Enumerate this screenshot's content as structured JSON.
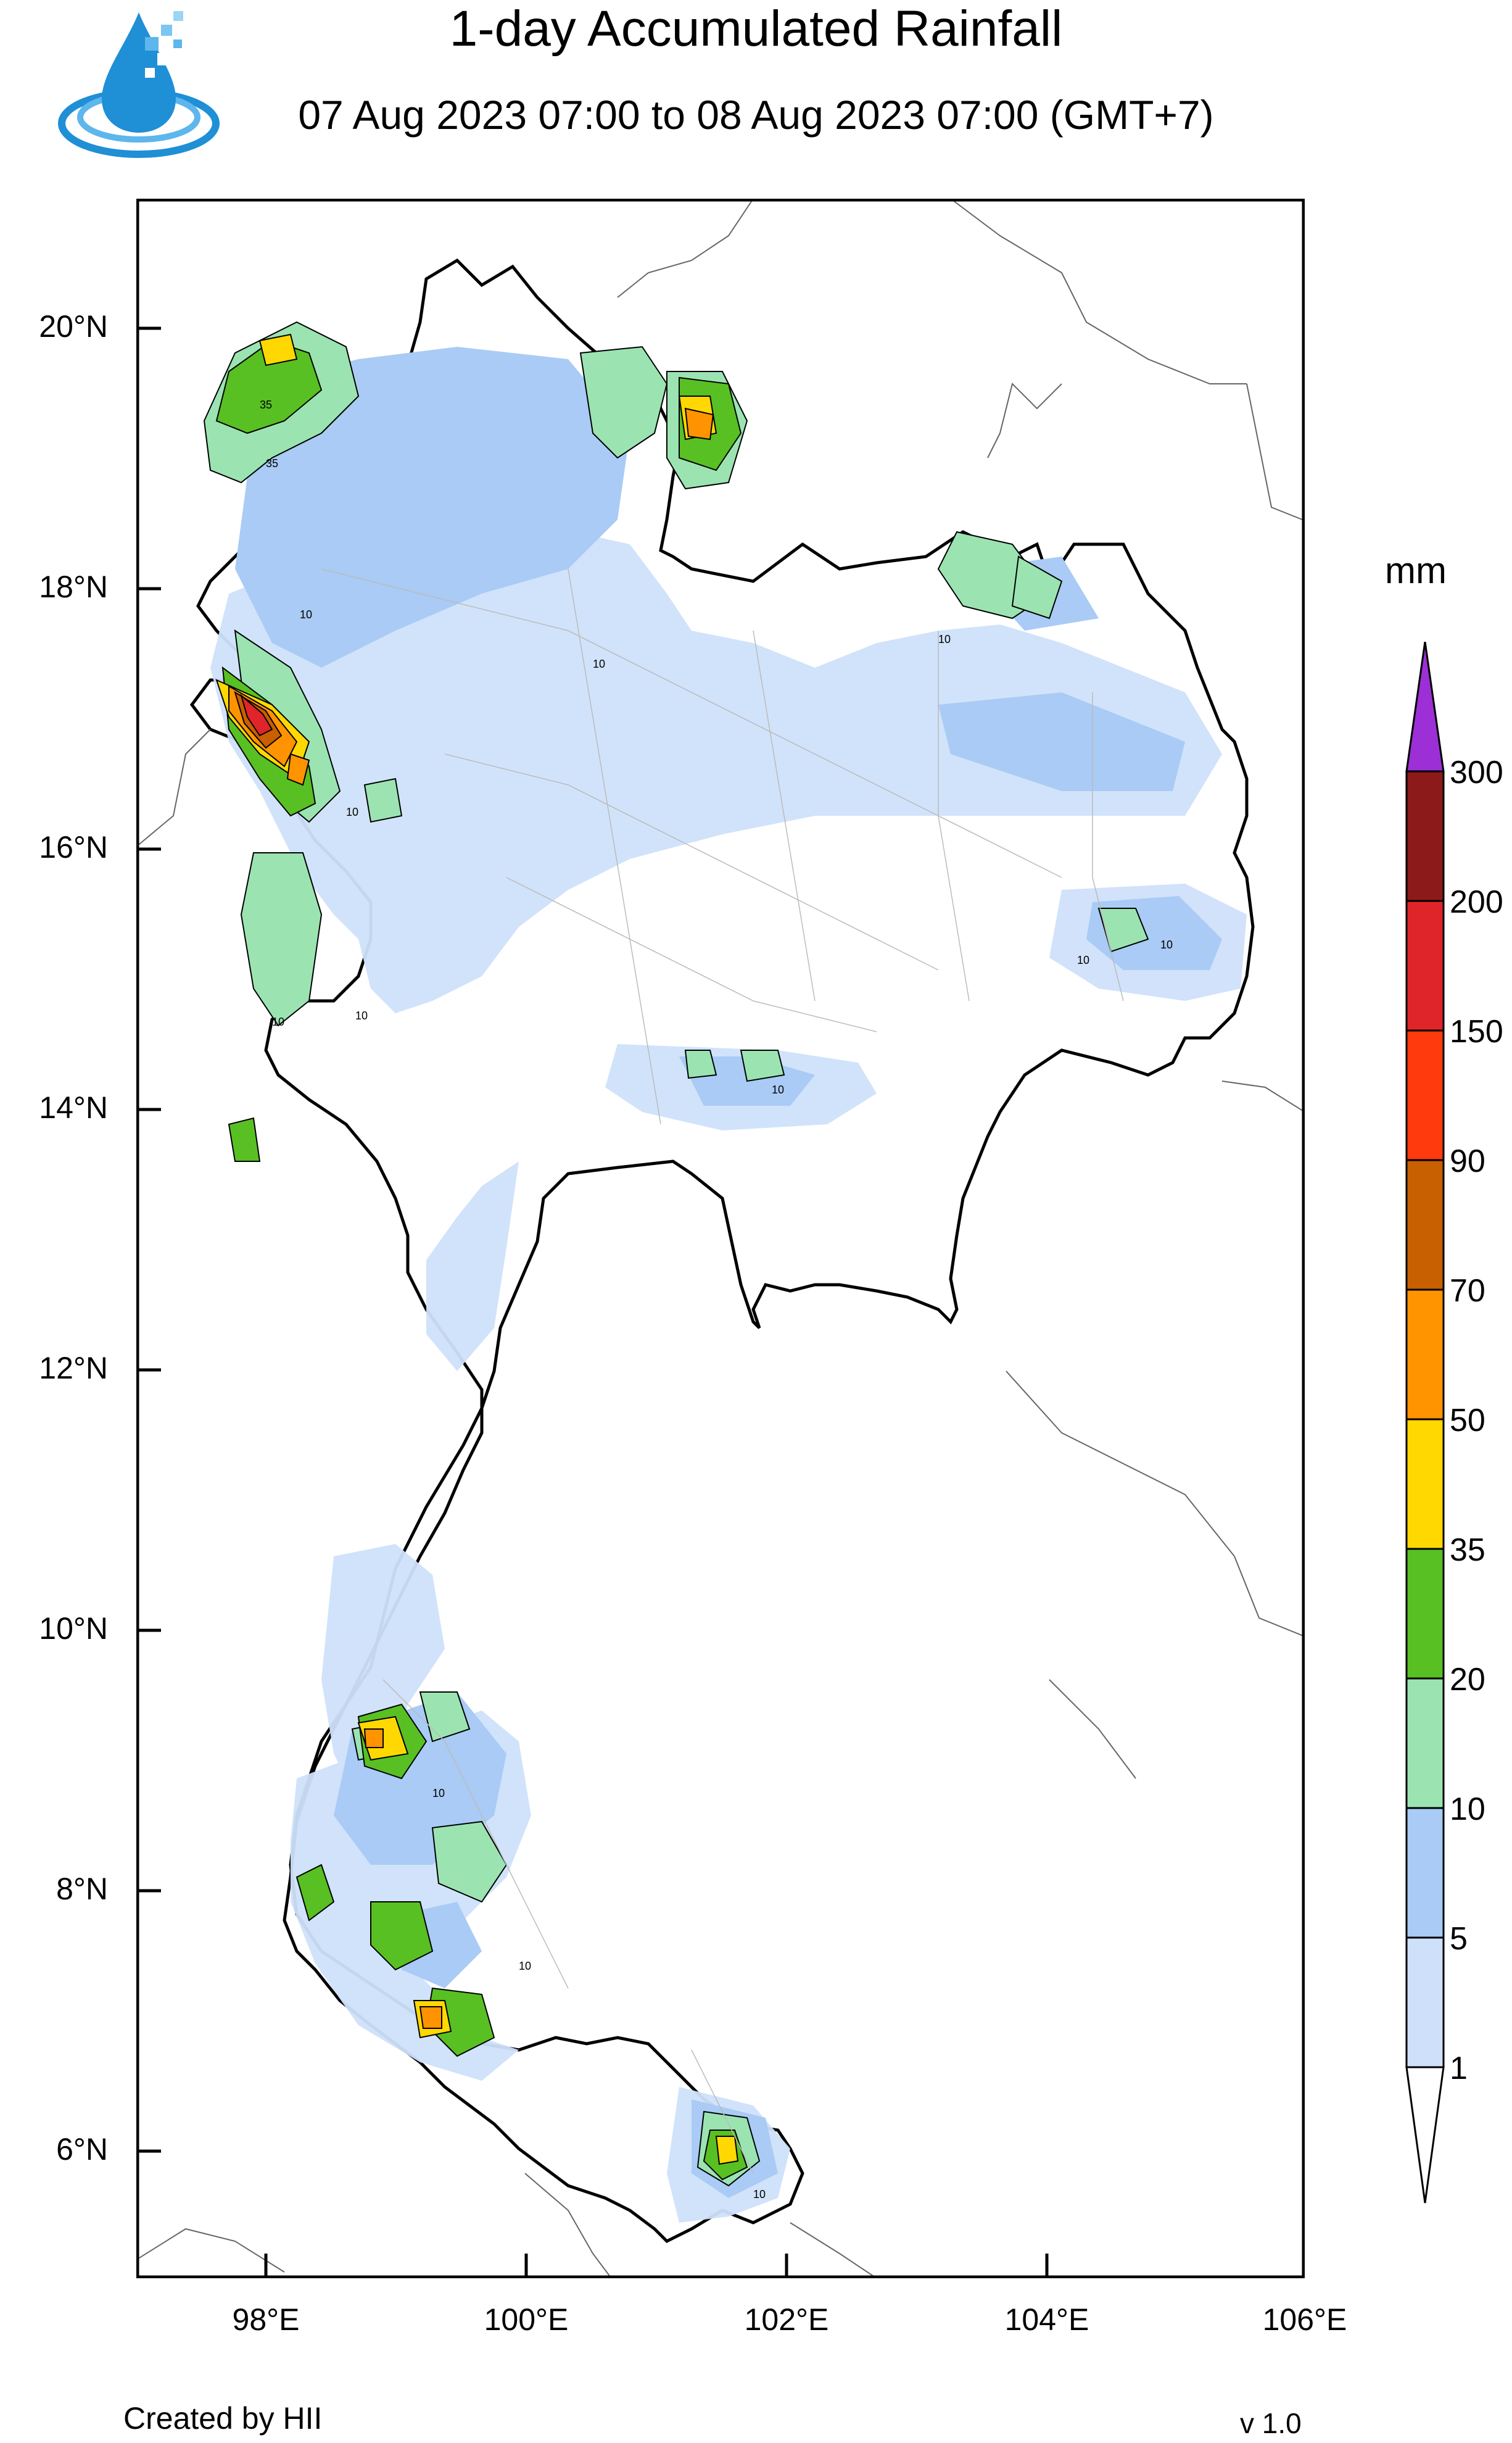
{
  "header": {
    "title": "1-day Accumulated Rainfall",
    "subtitle": "07 Aug 2023 07:00 to 08 Aug 2023 07:00 (GMT+7)"
  },
  "axes": {
    "latitudes": [
      "20°N",
      "18°N",
      "16°N",
      "14°N",
      "12°N",
      "10°N",
      "8°N",
      "6°N"
    ],
    "longitudes": [
      "98°E",
      "100°E",
      "102°E",
      "104°E",
      "106°E"
    ]
  },
  "legend": {
    "unit": "mm",
    "levels": [
      "1",
      "5",
      "10",
      "20",
      "35",
      "50",
      "70",
      "90",
      "150",
      "200",
      "300"
    ],
    "colors": [
      "#ffffff",
      "#cfe1fa",
      "#a9cbf5",
      "#9be4b2",
      "#58c023",
      "#ffd801",
      "#ff9300",
      "#c85f00",
      "#ff3a0c",
      "#e0252a",
      "#8c1a1a",
      "#9d2fd6"
    ]
  },
  "footer": {
    "credit": "Created by HII",
    "version": "v 1.0"
  },
  "contour_labels": [
    "35",
    "35",
    "10",
    "10",
    "10",
    "10",
    "10",
    "10",
    "10",
    "10",
    "10",
    "10",
    "10",
    "10"
  ]
}
